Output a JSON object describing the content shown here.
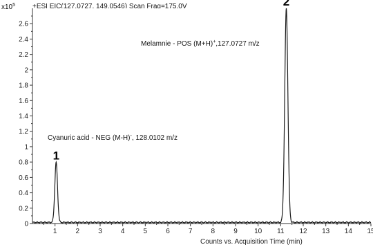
{
  "chart_data": {
    "type": "line",
    "header": "+ESI EIC(127.0727, 149.0546) Scan Frag=175.0V",
    "y_multiplier_base": "x10",
    "y_multiplier_exp": "5",
    "trace_index": "1",
    "xlabel": "Counts vs. Acquisition Time (min)",
    "xlim": [
      0,
      15
    ],
    "ylim": [
      0,
      2.8
    ],
    "x_ticks": [
      "1",
      "2",
      "3",
      "4",
      "5",
      "6",
      "7",
      "8",
      "9",
      "10",
      "11",
      "12",
      "13",
      "14",
      "15"
    ],
    "y_ticks": [
      "0",
      "0.2",
      "0.4",
      "0.6",
      "0.8",
      "1",
      "1.2",
      "1.4",
      "1.6",
      "1.8",
      "2",
      "2.2",
      "2.4",
      "2.6"
    ],
    "series": [
      {
        "color": "#1a1a1a",
        "peaks": [
          {
            "x": 1.05,
            "y": 0.78,
            "width": 0.06
          },
          {
            "x": 11.25,
            "y": 2.78,
            "width": 0.07
          }
        ],
        "baseline": 0.015
      }
    ],
    "annotations": [
      {
        "peak_label": "1",
        "text_before": "Cyanuric acid -  NEG (M-H)",
        "superscript": "-",
        "text_after": ", 128.0102 m/z"
      },
      {
        "peak_label": "2",
        "text_before": "Melamnie - POS (M+H)",
        "superscript": "+",
        "text_after": ",127.0727 m/z"
      }
    ],
    "grid": false,
    "plot_background": "#ffffff"
  }
}
